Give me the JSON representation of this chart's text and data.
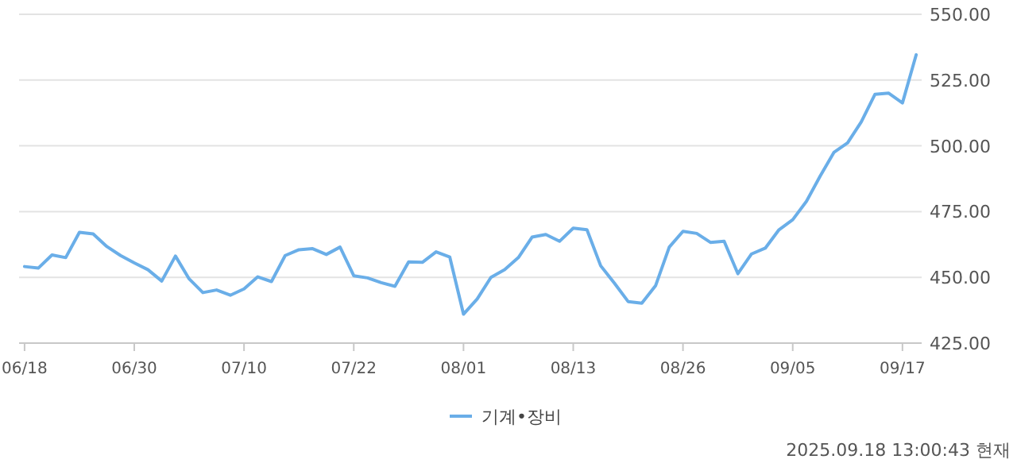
{
  "chart_data": {
    "type": "line",
    "categories": [
      "06/18",
      null,
      null,
      null,
      null,
      null,
      null,
      null,
      "06/30",
      null,
      null,
      null,
      null,
      null,
      null,
      null,
      "07/10",
      null,
      null,
      null,
      null,
      null,
      null,
      null,
      "07/22",
      null,
      null,
      null,
      null,
      null,
      null,
      null,
      "08/01",
      null,
      null,
      null,
      null,
      null,
      null,
      null,
      "08/13",
      null,
      null,
      null,
      null,
      null,
      null,
      null,
      "08/26",
      null,
      null,
      null,
      null,
      null,
      null,
      null,
      "09/05",
      null,
      null,
      null,
      null,
      null,
      null,
      null,
      "09/17",
      null
    ],
    "series": [
      {
        "name": "기계•장비",
        "color": "#6aaee8",
        "values": [
          454.1,
          453.5,
          458.5,
          457.5,
          467.1,
          466.5,
          461.7,
          458.3,
          455.5,
          452.9,
          448.6,
          458.1,
          449.4,
          444.2,
          445.2,
          443.2,
          445.6,
          450.2,
          448.4,
          458.3,
          460.5,
          460.9,
          458.7,
          461.5,
          450.6,
          449.8,
          448.0,
          446.6,
          455.9,
          455.7,
          459.7,
          457.7,
          436.0,
          441.8,
          450.0,
          452.9,
          457.5,
          465.3,
          466.3,
          463.7,
          468.7,
          468.1,
          454.4,
          447.8,
          440.8,
          440.2,
          446.8,
          461.5,
          467.5,
          466.7,
          463.3,
          463.7,
          451.4,
          458.9,
          461.1,
          468.1,
          471.9,
          478.9,
          488.5,
          497.5,
          501.1,
          509.1,
          519.6,
          520.0,
          516.3,
          534.6
        ]
      }
    ],
    "ylim": [
      425,
      550
    ],
    "yticks": [
      {
        "value": 425,
        "label": "425.00"
      },
      {
        "value": 450,
        "label": "450.00"
      },
      {
        "value": 475,
        "label": "475.00"
      },
      {
        "value": 500,
        "label": "500.00"
      },
      {
        "value": 525,
        "label": "525.00"
      },
      {
        "value": 550,
        "label": "550.00"
      }
    ],
    "grid": "y",
    "legend": "bottom",
    "marker": "none",
    "annotations": [
      "2025.09.18 13:00:43 현재"
    ]
  }
}
